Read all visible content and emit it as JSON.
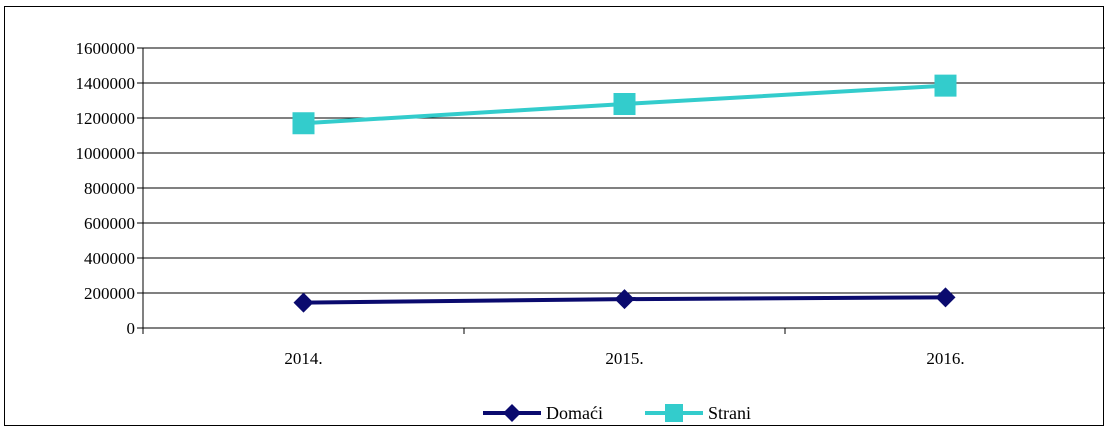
{
  "chart_data": {
    "type": "line",
    "categories": [
      "2014.",
      "2015.",
      "2016."
    ],
    "series": [
      {
        "name": "Domaći",
        "values": [
          145000,
          165000,
          175000
        ],
        "color": "#0A0A6E",
        "marker": "diamond"
      },
      {
        "name": "Strani",
        "values": [
          1170000,
          1280000,
          1385000
        ],
        "color": "#33CCCC",
        "marker": "square"
      }
    ],
    "ylim": [
      0,
      1600000
    ],
    "yticks": [
      0,
      200000,
      400000,
      600000,
      800000,
      1000000,
      1200000,
      1400000,
      1600000
    ],
    "ytick_labels": [
      "0",
      "200000",
      "400000",
      "600000",
      "800000",
      "1000000",
      "1200000",
      "1400000",
      "1600000"
    ],
    "grid": true,
    "legend": "bottom",
    "title": "",
    "xlabel": "",
    "ylabel": ""
  }
}
